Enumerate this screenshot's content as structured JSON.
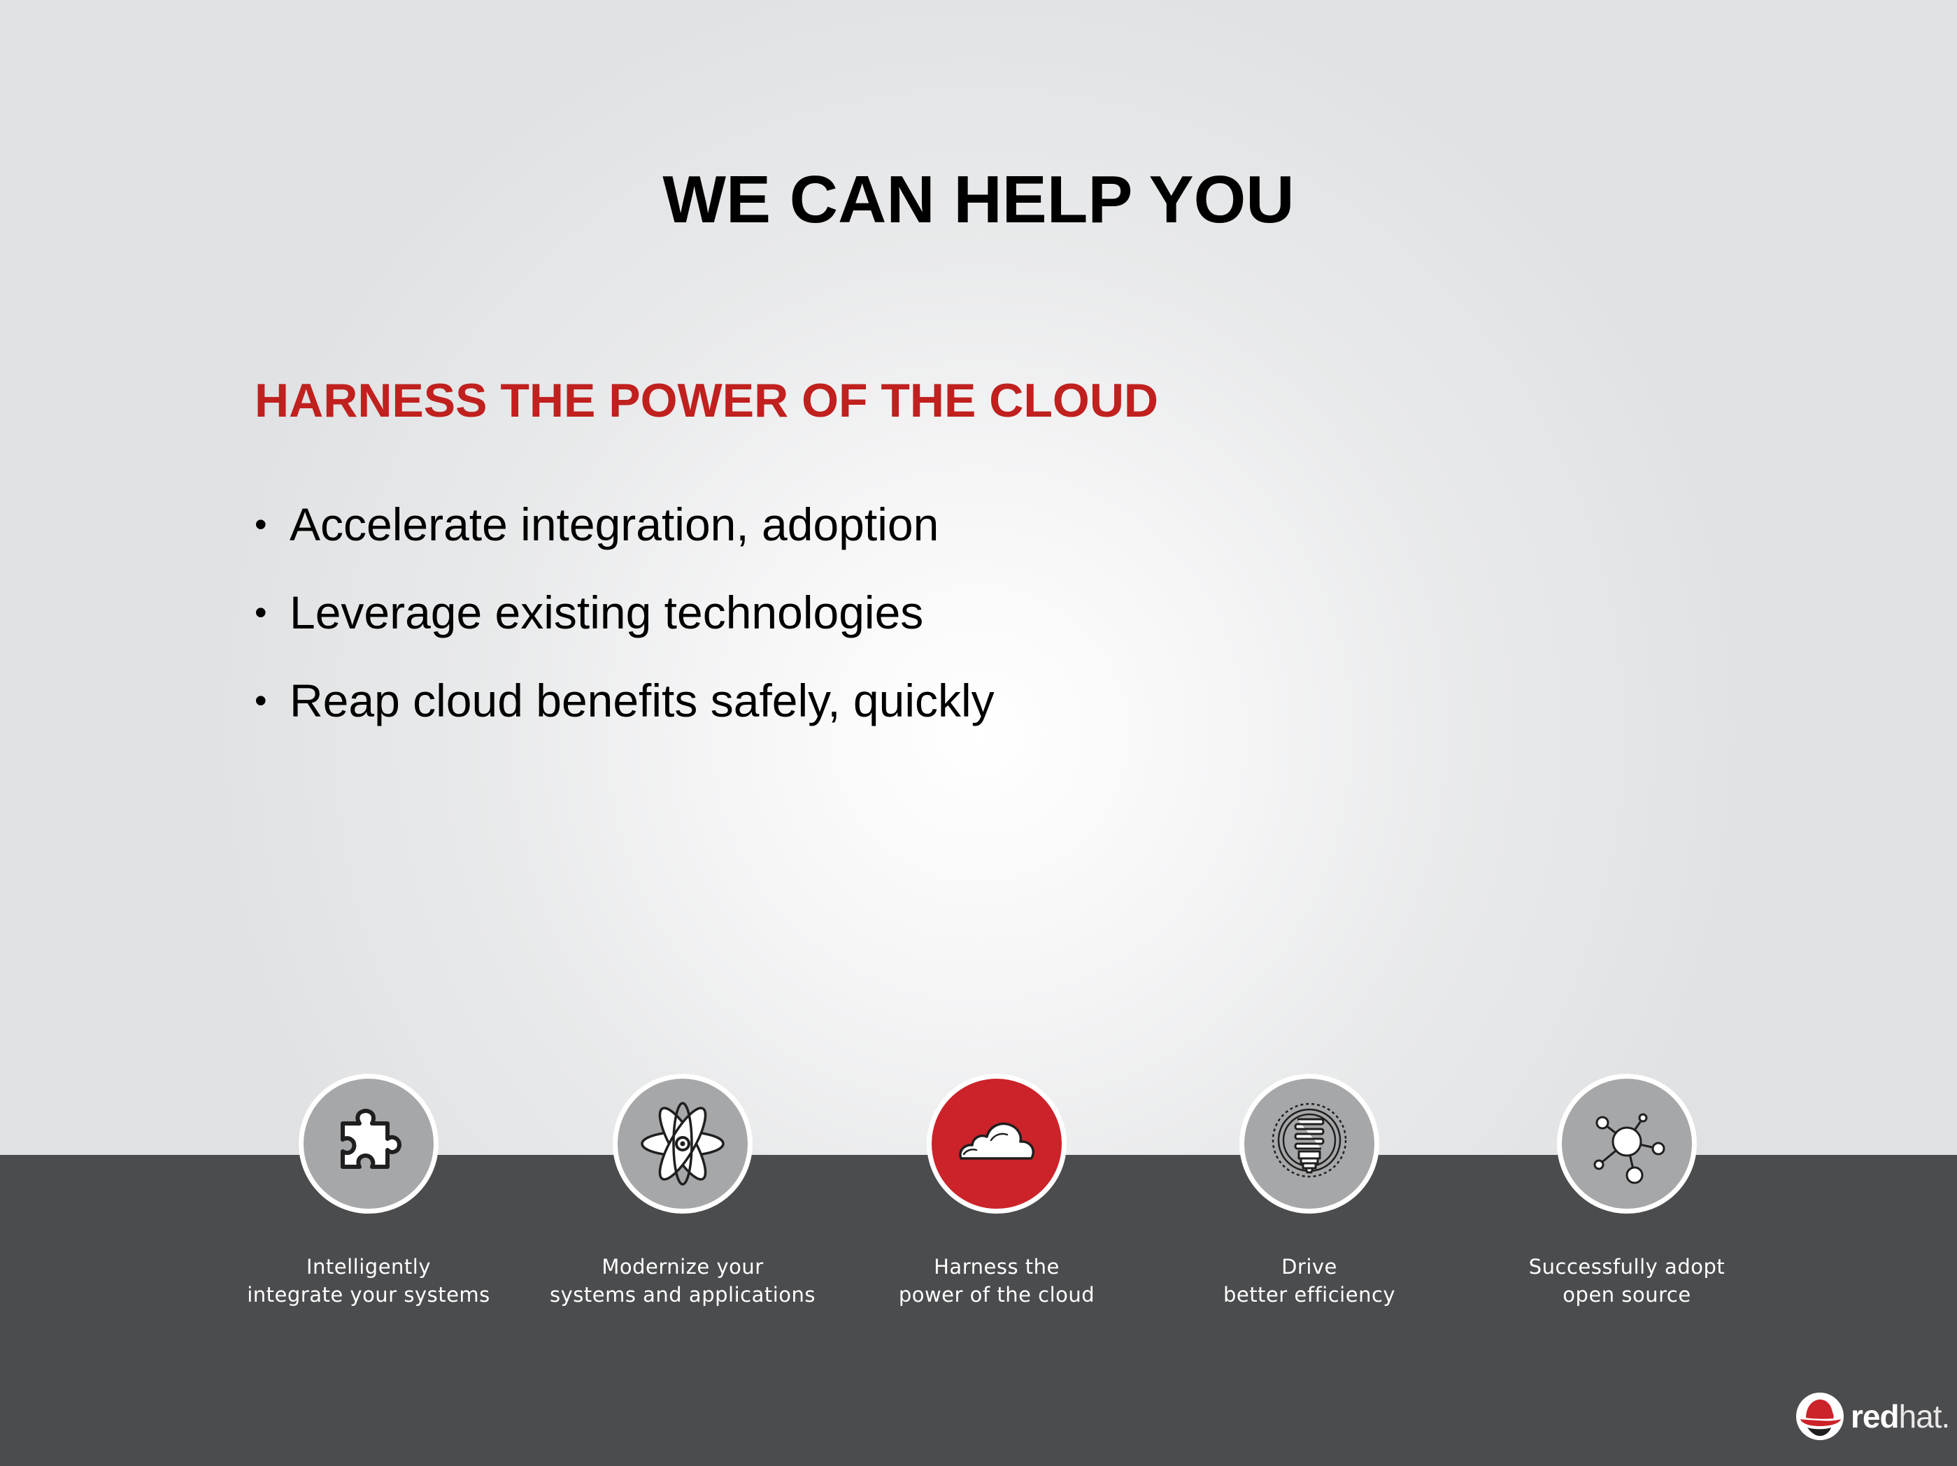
{
  "slide": {
    "title": "WE CAN HELP YOU",
    "heading": "HARNESS THE POWER OF THE CLOUD",
    "heading_color": "#c0201e",
    "bullet_marker": "•",
    "bullets": [
      "Accelerate integration, adoption",
      "Leverage existing technologies",
      "Reap cloud benefits safely, quickly"
    ]
  },
  "pillars": [
    {
      "icon": "puzzle-piece-icon",
      "active": false,
      "line1": "Intelligently",
      "line2": "integrate your systems"
    },
    {
      "icon": "atom-icon",
      "active": false,
      "line1": "Modernize your",
      "line2": "systems and applications"
    },
    {
      "icon": "cloud-icon",
      "active": true,
      "line1": "Harness the",
      "line2": "power of the cloud"
    },
    {
      "icon": "light-bulb-icon",
      "active": false,
      "line1": "Drive",
      "line2": "better efficiency"
    },
    {
      "icon": "network-node-icon",
      "active": false,
      "line1": "Successfully adopt",
      "line2": "open source"
    }
  ],
  "colors": {
    "accent_red": "#cc2229",
    "footer_band": "#4b4c4e",
    "inactive_circle": "#a6a7a9"
  },
  "logo": {
    "word_bold": "red",
    "word_light": "hat."
  }
}
